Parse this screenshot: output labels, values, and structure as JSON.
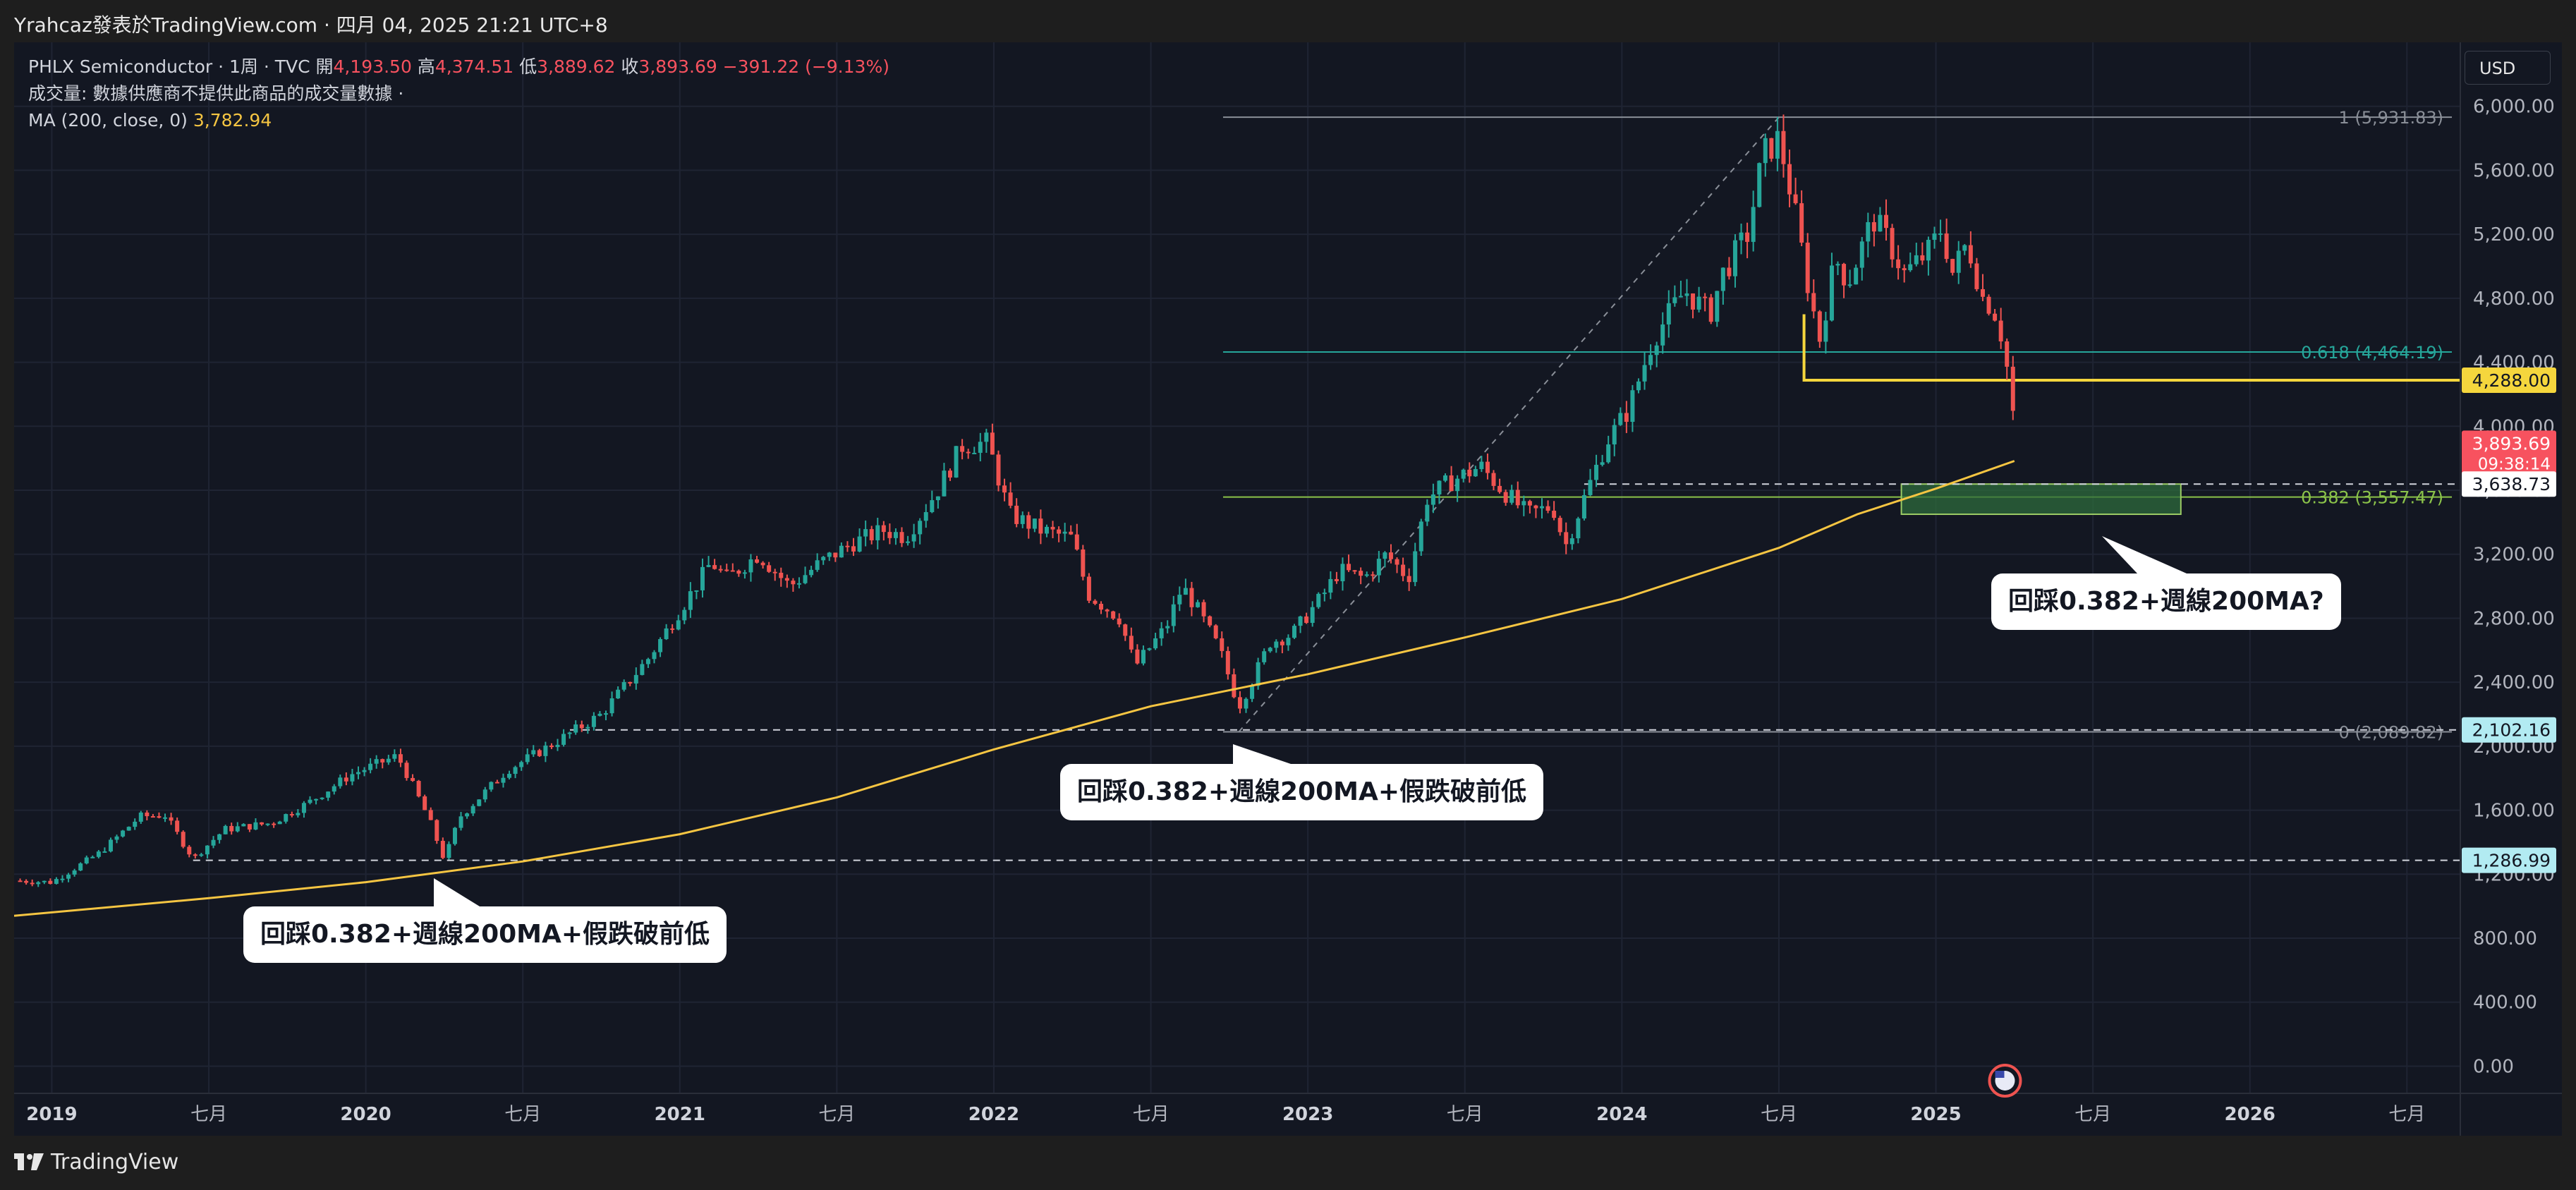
{
  "header": {
    "attribution": "Yrahcaz發表於TradingView.com · 四月 04, 2025 21:21 UTC+8"
  },
  "legend": {
    "symbol": "PHLX Semiconductor · 1周 · TVC",
    "open_label": "開",
    "open": "4,193.50",
    "high_label": "高",
    "high": "4,374.51",
    "low_label": "低",
    "low": "3,889.62",
    "close_label": "收",
    "close": "3,893.69",
    "change": "−391.22 (−9.13%)",
    "volume_note": "成交量: 數據供應商不提供此商品的成交量數據 ·",
    "ma_label": "MA (200, close, 0)",
    "ma_value": "3,782.94"
  },
  "currency": "USD",
  "footer": {
    "brand": "TradingView"
  },
  "colors": {
    "background": "#131722",
    "up": "#26a69a",
    "down": "#ef5350",
    "ma": "#f5c542",
    "grid": "#1f2433"
  },
  "callouts": [
    "回踩0.382+週線200MA+假跌破前低",
    "回踩0.382+週線200MA+假跌破前低",
    "回踩0.382+週線200MA?"
  ],
  "chart_data": {
    "type": "candlestick",
    "title": "PHLX Semiconductor",
    "interval": "1周",
    "x_tick_labels": [
      "2019",
      "七月",
      "2020",
      "七月",
      "2021",
      "七月",
      "2022",
      "七月",
      "2023",
      "七月",
      "2024",
      "七月",
      "2025",
      "七月",
      "2026",
      "七月"
    ],
    "x_tick_years": [
      2019.0,
      2019.5,
      2020.0,
      2020.5,
      2021.0,
      2021.5,
      2022.0,
      2022.5,
      2023.0,
      2023.5,
      2024.0,
      2024.5,
      2025.0,
      2025.5,
      2026.0,
      2026.5
    ],
    "y_ticks": [
      0,
      400,
      800,
      1200,
      1600,
      2000,
      2400,
      2800,
      3200,
      3600,
      4000,
      4400,
      4800,
      5200,
      5600,
      6000
    ],
    "y_tick_labels": [
      "0.00",
      "400.00",
      "800.00",
      "1,200.00",
      "1,600.00",
      "2,000.00",
      "2,400.00",
      "2,800.00",
      "3,200.00",
      "3,600.00",
      "4,000.00",
      "4,400.00",
      "4,800.00",
      "5,200.00",
      "5,600.00",
      "6,000.00"
    ],
    "ylim": [
      -170,
      6400
    ],
    "xlim": [
      2018.88,
      2026.67
    ],
    "price_path": [
      [
        2018.88,
        1160
      ],
      [
        2019.0,
        1150
      ],
      [
        2019.15,
        1330
      ],
      [
        2019.28,
        1560
      ],
      [
        2019.36,
        1570
      ],
      [
        2019.45,
        1300
      ],
      [
        2019.55,
        1480
      ],
      [
        2019.7,
        1520
      ],
      [
        2019.82,
        1650
      ],
      [
        2019.95,
        1820
      ],
      [
        2020.1,
        1940
      ],
      [
        2020.13,
        1830
      ],
      [
        2020.2,
        1550
      ],
      [
        2020.25,
        1290
      ],
      [
        2020.3,
        1560
      ],
      [
        2020.45,
        1850
      ],
      [
        2020.6,
        2020
      ],
      [
        2020.75,
        2200
      ],
      [
        2020.9,
        2550
      ],
      [
        2021.0,
        2850
      ],
      [
        2021.1,
        3150
      ],
      [
        2021.15,
        3050
      ],
      [
        2021.25,
        3200
      ],
      [
        2021.35,
        3000
      ],
      [
        2021.45,
        3150
      ],
      [
        2021.55,
        3270
      ],
      [
        2021.65,
        3350
      ],
      [
        2021.72,
        3310
      ],
      [
        2021.82,
        3600
      ],
      [
        2021.9,
        3880
      ],
      [
        2021.98,
        3900
      ],
      [
        2022.05,
        3450
      ],
      [
        2022.15,
        3350
      ],
      [
        2022.25,
        3300
      ],
      [
        2022.3,
        2950
      ],
      [
        2022.4,
        2800
      ],
      [
        2022.45,
        2500
      ],
      [
        2022.55,
        2750
      ],
      [
        2022.6,
        3000
      ],
      [
        2022.65,
        2850
      ],
      [
        2022.72,
        2600
      ],
      [
        2022.78,
        2250
      ],
      [
        2022.82,
        2400
      ],
      [
        2022.88,
        2650
      ],
      [
        2022.95,
        2700
      ],
      [
        2023.05,
        2950
      ],
      [
        2023.1,
        3100
      ],
      [
        2023.18,
        3050
      ],
      [
        2023.25,
        3200
      ],
      [
        2023.32,
        3050
      ],
      [
        2023.38,
        3550
      ],
      [
        2023.45,
        3650
      ],
      [
        2023.55,
        3750
      ],
      [
        2023.62,
        3600
      ],
      [
        2023.7,
        3450
      ],
      [
        2023.78,
        3500
      ],
      [
        2023.82,
        3250
      ],
      [
        2023.88,
        3550
      ],
      [
        2023.95,
        3900
      ],
      [
        2024.02,
        4100
      ],
      [
        2024.1,
        4550
      ],
      [
        2024.2,
        4850
      ],
      [
        2024.28,
        4700
      ],
      [
        2024.32,
        4950
      ],
      [
        2024.4,
        5200
      ],
      [
        2024.45,
        5700
      ],
      [
        2024.5,
        5800
      ],
      [
        2024.55,
        5350
      ],
      [
        2024.6,
        4800
      ],
      [
        2024.63,
        4550
      ],
      [
        2024.68,
        5050
      ],
      [
        2024.72,
        4900
      ],
      [
        2024.8,
        5300
      ],
      [
        2024.85,
        5150
      ],
      [
        2024.9,
        4950
      ],
      [
        2024.98,
        5100
      ],
      [
        2025.02,
        5250
      ],
      [
        2025.05,
        4950
      ],
      [
        2025.1,
        5150
      ],
      [
        2025.15,
        4800
      ],
      [
        2025.18,
        4750
      ],
      [
        2025.2,
        4650
      ],
      [
        2025.22,
        4450
      ],
      [
        2025.24,
        4190
      ],
      [
        2025.255,
        3894
      ]
    ],
    "ma200_path": [
      [
        2018.88,
        940
      ],
      [
        2019.5,
        1050
      ],
      [
        2020.0,
        1150
      ],
      [
        2020.5,
        1280
      ],
      [
        2021.0,
        1450
      ],
      [
        2021.5,
        1680
      ],
      [
        2022.0,
        1980
      ],
      [
        2022.5,
        2250
      ],
      [
        2023.0,
        2450
      ],
      [
        2023.5,
        2680
      ],
      [
        2024.0,
        2920
      ],
      [
        2024.5,
        3240
      ],
      [
        2024.75,
        3450
      ],
      [
        2025.0,
        3610
      ],
      [
        2025.25,
        3783
      ]
    ],
    "fib_levels": [
      {
        "label": "1 (5,931.83)",
        "value": 5931.83
      },
      {
        "label": "0.618 (4,464.19)",
        "value": 4464.19
      },
      {
        "label": "0.382 (3,557.47)",
        "value": 3557.47
      },
      {
        "label": "0 (2,089.82)",
        "value": 2089.82
      }
    ],
    "price_markers": [
      {
        "label": "4,288.00",
        "value": 4288,
        "style": "yellow"
      },
      {
        "label": "3,893.69",
        "sub": "09:38:14",
        "value": 3893.69,
        "style": "red"
      },
      {
        "label": "3,638.73",
        "value": 3638.73,
        "style": "white"
      },
      {
        "label": "2,102.16",
        "value": 2102.16,
        "style": "cyan"
      },
      {
        "label": "1,286.99",
        "value": 1286.99,
        "style": "cyan"
      }
    ]
  }
}
